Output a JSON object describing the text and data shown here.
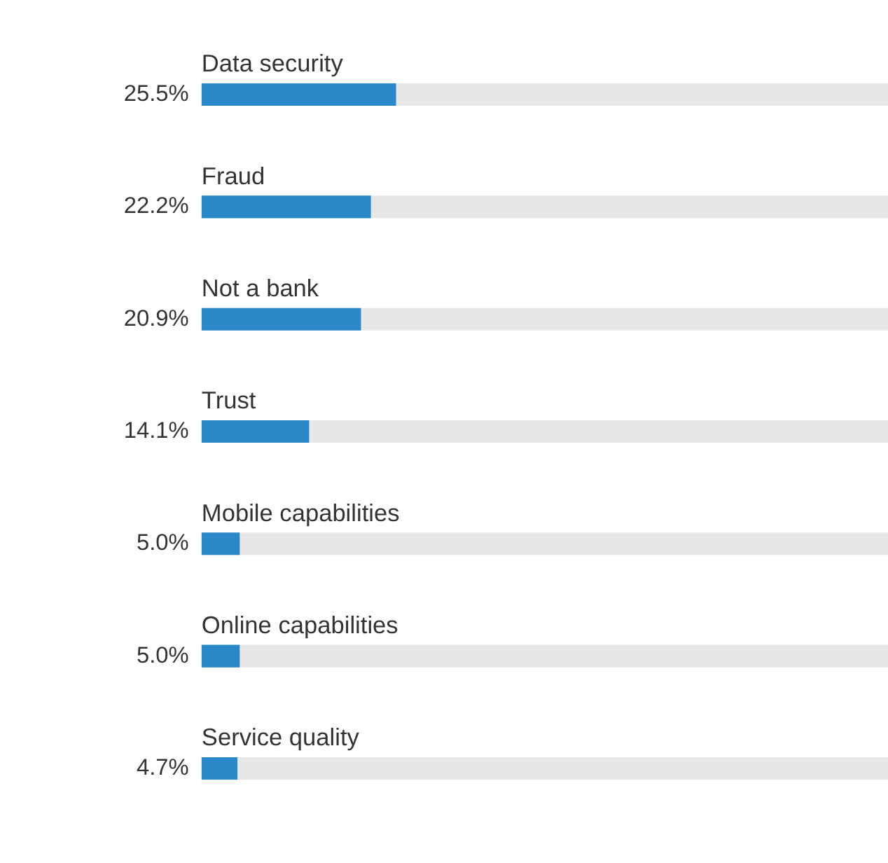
{
  "chart_data": {
    "type": "bar",
    "orientation": "horizontal",
    "categories": [
      "Data security",
      "Fraud",
      "Not a bank",
      "Trust",
      "Mobile capabilities",
      "Online capabilities",
      "Service quality"
    ],
    "values": [
      25.5,
      22.2,
      20.9,
      14.1,
      5.0,
      5.0,
      4.7
    ],
    "value_labels": [
      "25.5%",
      "22.2%",
      "20.9%",
      "14.1%",
      "5.0%",
      "5.0%",
      "4.7%"
    ],
    "color": "#2a87c8",
    "xlim": [
      0,
      90
    ],
    "grid": false,
    "tick_labels": false
  }
}
